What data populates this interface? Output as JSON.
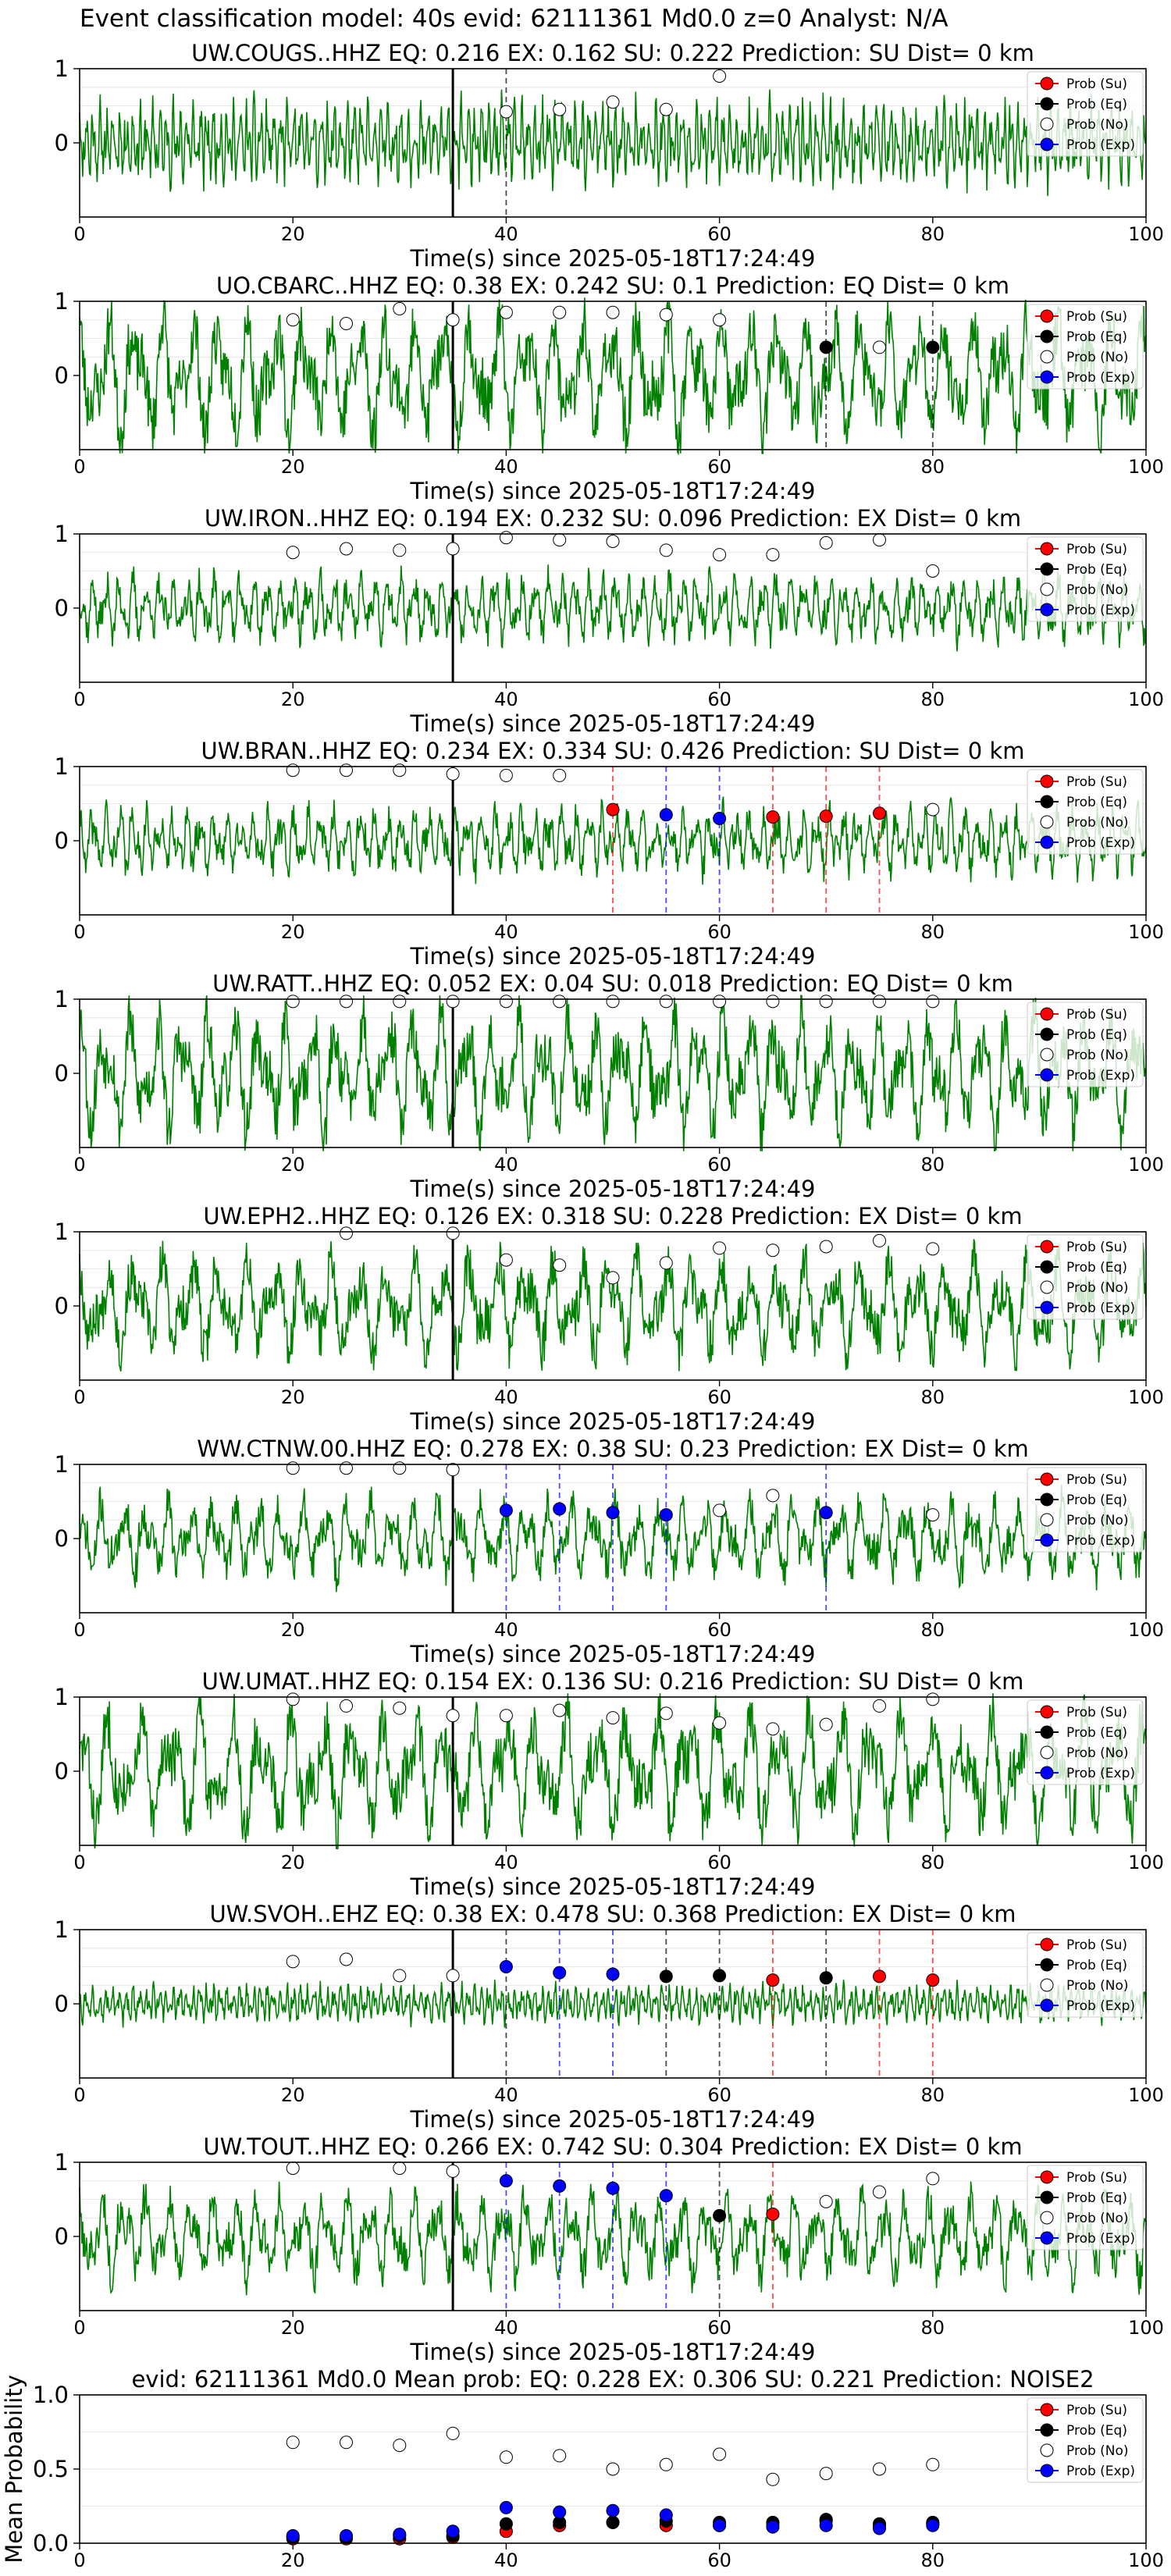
{
  "figure_title": "Event classification model: 40s evid: 62111361 Md0.0 z=0 Analyst: N/A",
  "colors": {
    "waveform": "#008000",
    "su": "#ff0000",
    "eq": "#000000",
    "no": "#ffffff",
    "exp": "#0000ff",
    "event_line": "#000000",
    "axis": "#000000",
    "grid": "#e6e6e6"
  },
  "legend_labels": [
    "Prob (Su)",
    "Prob (Eq)",
    "Prob (No)",
    "Prob (Exp)"
  ],
  "chart_data": [
    {
      "type": "line",
      "station": "UW.COUGS..HHZ",
      "title": "UW.COUGS..HHZ   EQ: 0.216  EX: 0.162  SU: 0.222   Prediction: SU    Dist= 0 km",
      "xlabel": "Time(s) since 2025-05-18T17:24:49",
      "xlim": [
        0,
        100
      ],
      "ylim": [
        -1,
        1
      ],
      "yticks": [
        0,
        1
      ],
      "xticks": [
        0,
        20,
        40,
        60,
        80,
        100
      ],
      "legend": "top-right",
      "event_time": 35,
      "amp": 0.55,
      "freq": 5,
      "seed": 11,
      "noise_probs": [
        {
          "x": 40,
          "y": 0.42
        },
        {
          "x": 45,
          "y": 0.45
        },
        {
          "x": 50,
          "y": 0.55
        },
        {
          "x": 55,
          "y": 0.45
        },
        {
          "x": 60,
          "y": 0.9
        }
      ],
      "su_probs": [],
      "eq_probs": [],
      "exp_probs": [],
      "vlines": [
        {
          "x": 40,
          "cls": "eq"
        }
      ]
    },
    {
      "type": "line",
      "station": "UO.CBARC..HHZ",
      "title": "UO.CBARC..HHZ   EQ: 0.38  EX: 0.242  SU: 0.1   Prediction: EQ    Dist= 0 km",
      "xlabel": "Time(s) since 2025-05-18T17:24:49",
      "xlim": [
        0,
        100
      ],
      "ylim": [
        -1,
        1
      ],
      "yticks": [
        0,
        1
      ],
      "xticks": [
        0,
        20,
        40,
        60,
        80,
        100
      ],
      "legend": "top-right",
      "event_time": 35,
      "amp": 0.9,
      "freq": 1.2,
      "seed": 23,
      "noise_probs": [
        {
          "x": 20,
          "y": 0.75
        },
        {
          "x": 25,
          "y": 0.7
        },
        {
          "x": 30,
          "y": 0.9
        },
        {
          "x": 35,
          "y": 0.75
        },
        {
          "x": 40,
          "y": 0.85
        },
        {
          "x": 45,
          "y": 0.85
        },
        {
          "x": 50,
          "y": 0.85
        },
        {
          "x": 55,
          "y": 0.82
        },
        {
          "x": 60,
          "y": 0.75
        },
        {
          "x": 75,
          "y": 0.38
        }
      ],
      "su_probs": [],
      "eq_probs": [
        {
          "x": 70,
          "y": 0.38
        },
        {
          "x": 80,
          "y": 0.38
        }
      ],
      "exp_probs": [],
      "vlines": [
        {
          "x": 70,
          "cls": "eq"
        },
        {
          "x": 80,
          "cls": "eq"
        }
      ]
    },
    {
      "type": "line",
      "station": "UW.IRON..HHZ",
      "title": "UW.IRON..HHZ   EQ: 0.194  EX: 0.232  SU: 0.096   Prediction: EX    Dist= 0 km",
      "xlabel": "Time(s) since 2025-05-18T17:24:49",
      "xlim": [
        0,
        100
      ],
      "ylim": [
        -1,
        1
      ],
      "yticks": [
        0,
        1
      ],
      "xticks": [
        0,
        20,
        40,
        60,
        80,
        100
      ],
      "legend": "top-right",
      "event_time": 35,
      "amp": 0.45,
      "freq": 2.5,
      "seed": 37,
      "noise_probs": [
        {
          "x": 20,
          "y": 0.75
        },
        {
          "x": 25,
          "y": 0.8
        },
        {
          "x": 30,
          "y": 0.78
        },
        {
          "x": 35,
          "y": 0.8
        },
        {
          "x": 40,
          "y": 0.95
        },
        {
          "x": 45,
          "y": 0.92
        },
        {
          "x": 50,
          "y": 0.9
        },
        {
          "x": 55,
          "y": 0.78
        },
        {
          "x": 60,
          "y": 0.72
        },
        {
          "x": 65,
          "y": 0.72
        },
        {
          "x": 70,
          "y": 0.88
        },
        {
          "x": 75,
          "y": 0.92
        },
        {
          "x": 80,
          "y": 0.5
        }
      ],
      "su_probs": [],
      "eq_probs": [],
      "exp_probs": [],
      "vlines": []
    },
    {
      "type": "line",
      "station": "UW.BRAN..HHZ",
      "title": "UW.BRAN..HHZ   EQ: 0.234  EX: 0.334  SU: 0.426   Prediction: SU    Dist= 0 km",
      "xlabel": "Time(s) since 2025-05-18T17:24:49",
      "xlim": [
        0,
        100
      ],
      "ylim": [
        -1,
        1
      ],
      "yticks": [
        0,
        1
      ],
      "xticks": [
        0,
        20,
        40,
        60,
        80,
        100
      ],
      "legend": "top-right",
      "event_time": 35,
      "amp": 0.45,
      "freq": 2.5,
      "seed": 41,
      "noise_probs": [
        {
          "x": 20,
          "y": 0.95
        },
        {
          "x": 25,
          "y": 0.95
        },
        {
          "x": 30,
          "y": 0.95
        },
        {
          "x": 35,
          "y": 0.9
        },
        {
          "x": 40,
          "y": 0.88
        },
        {
          "x": 45,
          "y": 0.88
        },
        {
          "x": 80,
          "y": 0.42
        }
      ],
      "su_probs": [
        {
          "x": 50,
          "y": 0.42
        },
        {
          "x": 65,
          "y": 0.32
        },
        {
          "x": 70,
          "y": 0.33
        },
        {
          "x": 75,
          "y": 0.37
        }
      ],
      "eq_probs": [],
      "exp_probs": [
        {
          "x": 55,
          "y": 0.35
        },
        {
          "x": 60,
          "y": 0.3
        }
      ],
      "vlines": [
        {
          "x": 50,
          "cls": "su"
        },
        {
          "x": 55,
          "cls": "exp"
        },
        {
          "x": 60,
          "cls": "exp"
        },
        {
          "x": 65,
          "cls": "su"
        },
        {
          "x": 70,
          "cls": "su"
        },
        {
          "x": 75,
          "cls": "su"
        }
      ]
    },
    {
      "type": "line",
      "station": "UW.RATT..HHZ",
      "title": "UW.RATT..HHZ   EQ: 0.052  EX: 0.04  SU: 0.018   Prediction: EQ    Dist= 0 km",
      "xlabel": "Time(s) since 2025-05-18T17:24:49",
      "xlim": [
        0,
        100
      ],
      "ylim": [
        -1,
        1
      ],
      "yticks": [
        0,
        1
      ],
      "xticks": [
        0,
        20,
        40,
        60,
        80,
        100
      ],
      "legend": "top-right",
      "event_time": 35,
      "amp": 0.85,
      "freq": 1.3,
      "seed": 53,
      "noise_probs": [
        {
          "x": 20,
          "y": 0.97
        },
        {
          "x": 25,
          "y": 0.97
        },
        {
          "x": 30,
          "y": 0.97
        },
        {
          "x": 35,
          "y": 0.97
        },
        {
          "x": 40,
          "y": 0.97
        },
        {
          "x": 45,
          "y": 0.97
        },
        {
          "x": 50,
          "y": 0.97
        },
        {
          "x": 55,
          "y": 0.97
        },
        {
          "x": 60,
          "y": 0.97
        },
        {
          "x": 65,
          "y": 0.97
        },
        {
          "x": 70,
          "y": 0.97
        },
        {
          "x": 75,
          "y": 0.97
        },
        {
          "x": 80,
          "y": 0.97
        }
      ],
      "su_probs": [],
      "eq_probs": [],
      "exp_probs": [],
      "vlines": []
    },
    {
      "type": "line",
      "station": "UW.EPH2..HHZ",
      "title": "UW.EPH2..HHZ   EQ: 0.126  EX: 0.318  SU: 0.228   Prediction: EX    Dist= 0 km",
      "xlabel": "Time(s) since 2025-05-18T17:24:49",
      "xlim": [
        0,
        100
      ],
      "ylim": [
        -1,
        1
      ],
      "yticks": [
        0,
        1
      ],
      "xticks": [
        0,
        20,
        40,
        60,
        80,
        100
      ],
      "legend": "top-right",
      "event_time": 35,
      "amp": 0.7,
      "freq": 1.2,
      "seed": 67,
      "noise_probs": [
        {
          "x": 25,
          "y": 0.98
        },
        {
          "x": 35,
          "y": 0.98
        },
        {
          "x": 40,
          "y": 0.62
        },
        {
          "x": 45,
          "y": 0.55
        },
        {
          "x": 50,
          "y": 0.38
        },
        {
          "x": 55,
          "y": 0.58
        },
        {
          "x": 60,
          "y": 0.78
        },
        {
          "x": 65,
          "y": 0.75
        },
        {
          "x": 70,
          "y": 0.8
        },
        {
          "x": 75,
          "y": 0.88
        },
        {
          "x": 80,
          "y": 0.77
        }
      ],
      "su_probs": [],
      "eq_probs": [],
      "exp_probs": [],
      "vlines": []
    },
    {
      "type": "line",
      "station": "WW.CTNW.00.HHZ",
      "title": "WW.CTNW.00.HHZ   EQ: 0.278  EX: 0.38  SU: 0.23   Prediction: EX    Dist= 0 km",
      "xlabel": "Time(s) since 2025-05-18T17:24:49",
      "xlim": [
        0,
        100
      ],
      "ylim": [
        -1,
        1
      ],
      "yticks": [
        0,
        1
      ],
      "xticks": [
        0,
        20,
        40,
        60,
        80,
        100
      ],
      "legend": "top-right",
      "event_time": 35,
      "amp": 0.55,
      "freq": 1.5,
      "seed": 71,
      "noise_probs": [
        {
          "x": 20,
          "y": 0.95
        },
        {
          "x": 25,
          "y": 0.95
        },
        {
          "x": 30,
          "y": 0.95
        },
        {
          "x": 35,
          "y": 0.93
        },
        {
          "x": 60,
          "y": 0.38
        },
        {
          "x": 65,
          "y": 0.58
        },
        {
          "x": 80,
          "y": 0.32
        }
      ],
      "su_probs": [],
      "eq_probs": [],
      "exp_probs": [
        {
          "x": 40,
          "y": 0.38
        },
        {
          "x": 45,
          "y": 0.4
        },
        {
          "x": 50,
          "y": 0.35
        },
        {
          "x": 55,
          "y": 0.32
        },
        {
          "x": 70,
          "y": 0.35
        }
      ],
      "vlines": [
        {
          "x": 40,
          "cls": "exp"
        },
        {
          "x": 45,
          "cls": "exp"
        },
        {
          "x": 50,
          "cls": "exp"
        },
        {
          "x": 55,
          "cls": "exp"
        },
        {
          "x": 70,
          "cls": "exp"
        }
      ]
    },
    {
      "type": "line",
      "station": "UW.UMAT..HHZ",
      "title": "UW.UMAT..HHZ   EQ: 0.154  EX: 0.136  SU: 0.216   Prediction: SU    Dist= 0 km",
      "xlabel": "Time(s) since 2025-05-18T17:24:49",
      "xlim": [
        0,
        100
      ],
      "ylim": [
        -1,
        1
      ],
      "yticks": [
        0,
        1
      ],
      "xticks": [
        0,
        20,
        40,
        60,
        80,
        100
      ],
      "legend": "top-right",
      "event_time": 35,
      "amp": 0.85,
      "freq": 1.1,
      "seed": 83,
      "noise_probs": [
        {
          "x": 20,
          "y": 0.97
        },
        {
          "x": 25,
          "y": 0.88
        },
        {
          "x": 30,
          "y": 0.85
        },
        {
          "x": 35,
          "y": 0.75
        },
        {
          "x": 40,
          "y": 0.75
        },
        {
          "x": 45,
          "y": 0.82
        },
        {
          "x": 50,
          "y": 0.72
        },
        {
          "x": 55,
          "y": 0.78
        },
        {
          "x": 60,
          "y": 0.65
        },
        {
          "x": 65,
          "y": 0.57
        },
        {
          "x": 70,
          "y": 0.63
        },
        {
          "x": 75,
          "y": 0.88
        },
        {
          "x": 80,
          "y": 0.97
        }
      ],
      "su_probs": [],
      "eq_probs": [],
      "exp_probs": [],
      "vlines": []
    },
    {
      "type": "line",
      "station": "UW.SVOH..EHZ",
      "title": "UW.SVOH..EHZ   EQ: 0.38  EX: 0.478  SU: 0.368   Prediction: EX    Dist= 0 km",
      "xlabel": "Time(s) since 2025-05-18T17:24:49",
      "xlim": [
        0,
        100
      ],
      "ylim": [
        -1,
        1
      ],
      "yticks": [
        0,
        1
      ],
      "xticks": [
        0,
        20,
        40,
        60,
        80,
        100
      ],
      "legend": "top-right",
      "event_time": 35,
      "amp": 0.25,
      "freq": 5,
      "seed": 97,
      "noise_probs": [
        {
          "x": 20,
          "y": 0.57
        },
        {
          "x": 25,
          "y": 0.6
        },
        {
          "x": 30,
          "y": 0.38
        },
        {
          "x": 35,
          "y": 0.38
        }
      ],
      "su_probs": [
        {
          "x": 65,
          "y": 0.32
        },
        {
          "x": 75,
          "y": 0.37
        },
        {
          "x": 80,
          "y": 0.32
        }
      ],
      "eq_probs": [
        {
          "x": 55,
          "y": 0.37
        },
        {
          "x": 60,
          "y": 0.38
        },
        {
          "x": 70,
          "y": 0.35
        }
      ],
      "exp_probs": [
        {
          "x": 40,
          "y": 0.5
        },
        {
          "x": 45,
          "y": 0.42
        },
        {
          "x": 50,
          "y": 0.4
        }
      ],
      "vlines": [
        {
          "x": 40,
          "cls": "eq"
        },
        {
          "x": 45,
          "cls": "exp"
        },
        {
          "x": 50,
          "cls": "exp"
        },
        {
          "x": 55,
          "cls": "eq"
        },
        {
          "x": 60,
          "cls": "eq"
        },
        {
          "x": 65,
          "cls": "su"
        },
        {
          "x": 70,
          "cls": "eq"
        },
        {
          "x": 75,
          "cls": "su"
        },
        {
          "x": 80,
          "cls": "su"
        }
      ]
    },
    {
      "type": "line",
      "station": "UW.TOUT..HHZ",
      "title": "UW.TOUT..HHZ   EQ: 0.266  EX: 0.742  SU: 0.304   Prediction: EX    Dist= 0 km",
      "xlabel": "Time(s) since 2025-05-18T17:24:49",
      "xlim": [
        0,
        100
      ],
      "ylim": [
        -1,
        1
      ],
      "yticks": [
        0,
        1
      ],
      "xticks": [
        0,
        20,
        40,
        60,
        80,
        100
      ],
      "legend": "top-right",
      "event_time": 35,
      "amp": 0.6,
      "freq": 1.5,
      "seed": 101,
      "noise_probs": [
        {
          "x": 20,
          "y": 0.92
        },
        {
          "x": 30,
          "y": 0.92
        },
        {
          "x": 35,
          "y": 0.88
        },
        {
          "x": 70,
          "y": 0.47
        },
        {
          "x": 75,
          "y": 0.6
        },
        {
          "x": 80,
          "y": 0.78
        }
      ],
      "su_probs": [
        {
          "x": 65,
          "y": 0.3
        }
      ],
      "eq_probs": [
        {
          "x": 60,
          "y": 0.28
        }
      ],
      "exp_probs": [
        {
          "x": 40,
          "y": 0.75
        },
        {
          "x": 45,
          "y": 0.68
        },
        {
          "x": 50,
          "y": 0.65
        },
        {
          "x": 55,
          "y": 0.55
        }
      ],
      "vlines": [
        {
          "x": 40,
          "cls": "exp"
        },
        {
          "x": 45,
          "cls": "exp"
        },
        {
          "x": 50,
          "cls": "exp"
        },
        {
          "x": 55,
          "cls": "exp"
        },
        {
          "x": 60,
          "cls": "eq"
        },
        {
          "x": 65,
          "cls": "su"
        }
      ]
    },
    {
      "type": "scatter",
      "title": "evid: 62111361  Md0.0   Mean prob:   EQ: 0.228  EX: 0.306  SU: 0.221   Prediction: NOISE2",
      "ylabel": "Mean Probability",
      "xlabel": "",
      "xlim": [
        0,
        100
      ],
      "ylim": [
        0,
        1
      ],
      "yticks": [
        0,
        0.5,
        1
      ],
      "ytick_labels": [
        "0.0",
        "0.5",
        "1.0"
      ],
      "xticks": [
        0,
        20,
        40,
        60,
        80,
        100
      ],
      "legend": "top-right",
      "x": [
        20,
        25,
        30,
        35,
        40,
        45,
        50,
        55,
        60,
        65,
        70,
        75,
        80
      ],
      "series": [
        {
          "name": "Prob (Su)",
          "cls": "su",
          "values": [
            0.03,
            0.03,
            0.03,
            0.04,
            0.08,
            0.12,
            0.14,
            0.12,
            0.12,
            0.13,
            0.15,
            0.12,
            0.13
          ]
        },
        {
          "name": "Prob (Eq)",
          "cls": "eq",
          "values": [
            0.04,
            0.04,
            0.05,
            0.05,
            0.13,
            0.14,
            0.14,
            0.15,
            0.14,
            0.14,
            0.16,
            0.13,
            0.14
          ]
        },
        {
          "name": "Prob (No)",
          "cls": "no",
          "values": [
            0.68,
            0.68,
            0.66,
            0.74,
            0.58,
            0.59,
            0.5,
            0.53,
            0.6,
            0.43,
            0.47,
            0.5,
            0.53
          ]
        },
        {
          "name": "Prob (Exp)",
          "cls": "exp",
          "values": [
            0.05,
            0.05,
            0.06,
            0.08,
            0.24,
            0.21,
            0.22,
            0.19,
            0.12,
            0.11,
            0.12,
            0.1,
            0.12
          ]
        }
      ]
    }
  ]
}
